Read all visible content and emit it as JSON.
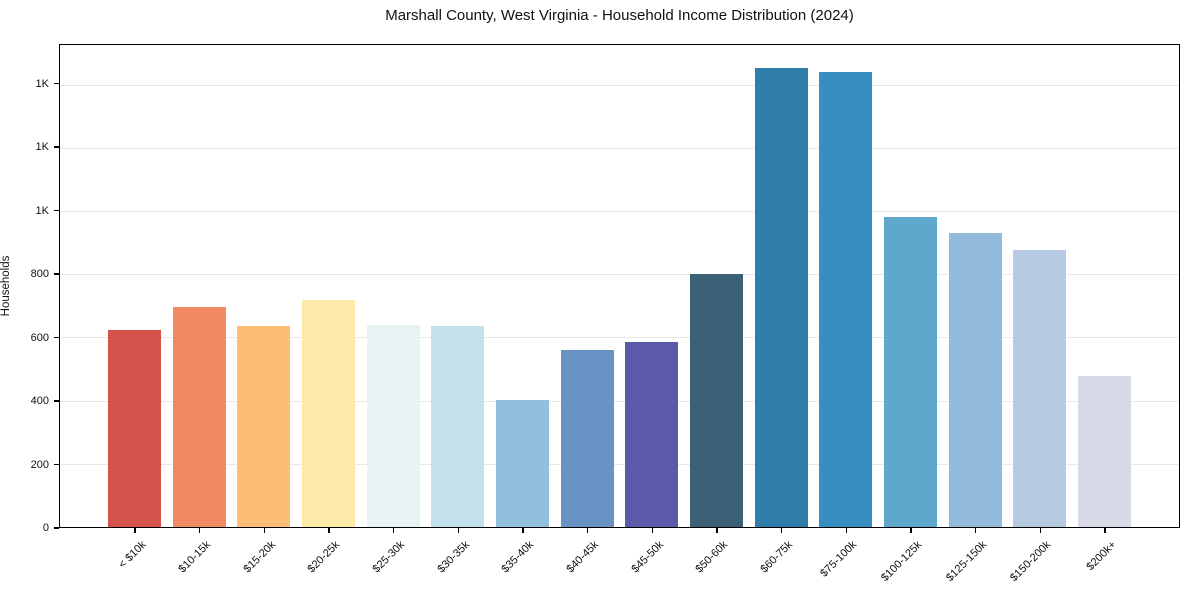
{
  "title": "Marshall County, West Virginia - Household Income Distribution (2024)",
  "chart_data": {
    "type": "bar",
    "title": "Marshall County, West Virginia - Household Income Distribution (2024)",
    "xlabel": "",
    "ylabel": "Households",
    "categories": [
      "< $10k",
      "$10-15k",
      "$15-20k",
      "$20-25k",
      "$25-30k",
      "$30-35k",
      "$35-40k",
      "$40-45k",
      "$45-50k",
      "$50-60k",
      "$60-75k",
      "$75-100k",
      "$100-125k",
      "$125-150k",
      "$150-200k",
      "$200k+"
    ],
    "values": [
      622,
      697,
      635,
      719,
      638,
      635,
      403,
      561,
      584,
      799,
      1452,
      1440,
      980,
      931,
      877,
      478
    ],
    "bar_colors": [
      "#d5524d",
      "#f08a62",
      "#fcbe75",
      "#fdeaa9",
      "#e7f3f5",
      "#c3e1ea",
      "#90c0dc",
      "#6892c4",
      "#5b5aa9",
      "#3a6175",
      "#2f7dab",
      "#368ec3",
      "#60a7cc",
      "#93badb",
      "#b6cbe1",
      "#d8dae8"
    ],
    "ylim": [
      0,
      1525
    ],
    "yticks": [
      {
        "value": 0,
        "label": "0"
      },
      {
        "value": 200,
        "label": "200"
      },
      {
        "value": 400,
        "label": "400"
      },
      {
        "value": 600,
        "label": "600"
      },
      {
        "value": 800,
        "label": "800"
      },
      {
        "value": 1000,
        "label": "1K"
      },
      {
        "value": 1200,
        "label": "1K"
      },
      {
        "value": 1400,
        "label": "1K"
      }
    ],
    "grid": "horizontal",
    "legend": "none",
    "background_color": "#ffffff",
    "gridline_color": "#e8e8e8",
    "axis_color": "#000000"
  }
}
